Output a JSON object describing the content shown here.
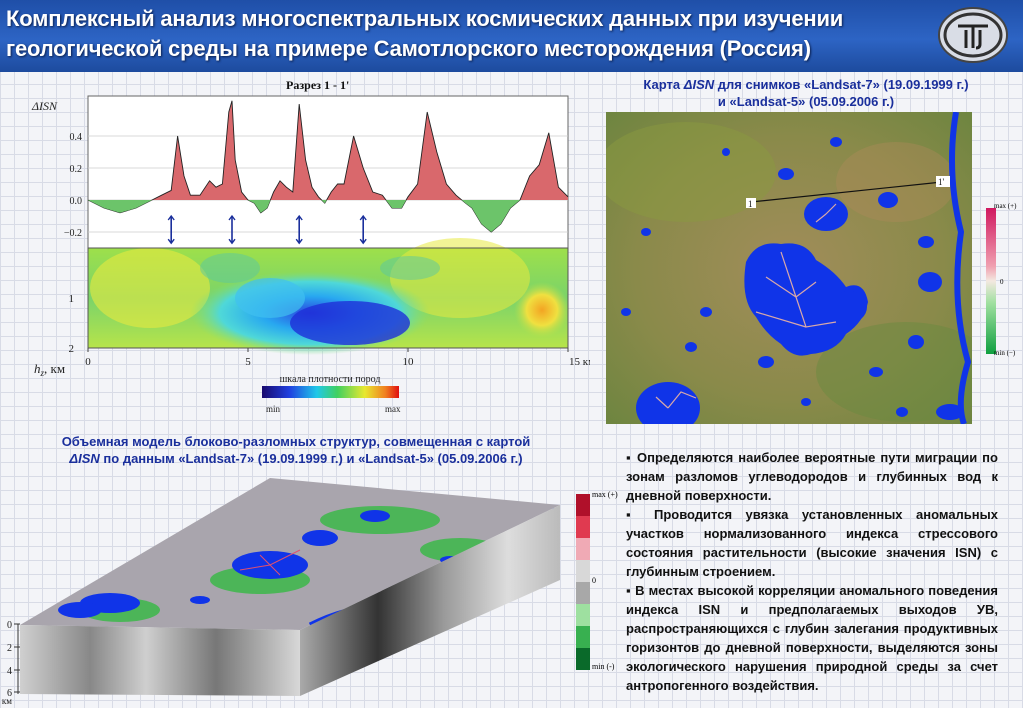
{
  "header": {
    "title_line1": "Комплексный анализ многоспектральных космических данных при изучении",
    "title_line2": "геологической среды на примере Самотлорского месторождения (Россия)"
  },
  "colors": {
    "header_bg": "#2a5fbf",
    "caption_text": "#1a2f9c",
    "positive_fill": "#d9686c",
    "negative_fill": "#6cc46a",
    "lake_blue": "#1034e8"
  },
  "section_profile": {
    "title": "Разрез 1 - 1'",
    "y_axis_label": "ΔISN",
    "y_ticks": [
      "0.4",
      "0.2",
      "0.0",
      "−0.2"
    ],
    "depth_ticks": [
      "1",
      "2"
    ],
    "x_ticks": [
      "0",
      "5",
      "10",
      "15 км"
    ],
    "hz_label": "h",
    "hz_sub": "z",
    "hz_unit": ", км",
    "density_scale_label": "шкала плотности пород",
    "density_min": "min",
    "density_max": "max"
  },
  "chart_data": {
    "type": "area",
    "xlabel": "",
    "ylabel": "ΔISN",
    "xlim": [
      0,
      15
    ],
    "ylim": [
      -0.3,
      0.65
    ],
    "x": [
      0.0,
      0.5,
      1.0,
      1.5,
      2.0,
      2.3,
      2.6,
      2.8,
      3.0,
      3.2,
      3.5,
      3.8,
      4.0,
      4.2,
      4.4,
      4.5,
      4.6,
      4.8,
      5.0,
      5.2,
      5.4,
      5.6,
      5.8,
      6.0,
      6.2,
      6.4,
      6.6,
      6.8,
      7.0,
      7.2,
      7.4,
      7.6,
      7.8,
      8.0,
      8.3,
      8.6,
      8.9,
      9.2,
      9.5,
      9.8,
      10.0,
      10.3,
      10.6,
      10.9,
      11.2,
      11.5,
      11.8,
      12.0,
      12.3,
      12.6,
      12.9,
      13.2,
      13.5,
      13.8,
      14.1,
      14.4,
      14.7,
      15.0
    ],
    "y": [
      0.0,
      -0.05,
      -0.08,
      -0.05,
      0.0,
      0.03,
      0.06,
      0.4,
      0.15,
      0.03,
      0.03,
      0.12,
      0.08,
      0.1,
      0.55,
      0.62,
      0.25,
      0.05,
      0.0,
      -0.02,
      -0.08,
      -0.05,
      0.05,
      0.12,
      0.08,
      0.05,
      0.6,
      0.25,
      0.08,
      0.02,
      -0.02,
      0.05,
      0.1,
      0.1,
      0.4,
      0.2,
      0.05,
      0.03,
      -0.05,
      -0.05,
      0.02,
      0.1,
      0.55,
      0.3,
      0.1,
      0.03,
      -0.02,
      -0.05,
      -0.15,
      -0.2,
      -0.15,
      -0.05,
      0.0,
      0.15,
      0.22,
      0.42,
      0.08,
      0.02
    ],
    "markers_km": [
      2.6,
      4.5,
      6.6,
      8.6
    ]
  },
  "map": {
    "title_line1_pre": "Карта ",
    "title_isn": "ΔISN",
    "title_line1_post": " для снимков «Landsat-7» (19.09.1999 г.)",
    "title_line2": "и «Landsat-5» (05.09.2006 г.)",
    "point_a": "1",
    "point_b": "1'",
    "legend_max": "max (+)",
    "legend_zero": "0",
    "legend_min": "min (−)"
  },
  "block_model": {
    "caption_line1": "Объемная модель блоково-разломных структур, совмещенная с картой",
    "caption_isn": "ΔISN",
    "caption_line2_post": " по данным «Landsat-7» (19.09.1999 г.) и «Landsat-5» (05.09.2006 г.)",
    "depth_ticks": [
      "0",
      "2",
      "4",
      "6"
    ],
    "depth_unit": "км",
    "legend_max": "max (+)",
    "legend_zero": "0",
    "legend_min": "min (-)"
  },
  "bullets": [
    "Определяются наиболее вероятные пути миграции по зонам разломов углеводородов и глубинных вод к дневной поверхности.",
    "Проводится увязка установленных аномальных участков нормализованного индекса стрессового состояния растительности (высокие значения ISN) с глубинным строением.",
    "В местах высокой корреляции аномального поведения индекса ISN и предполагаемых выходов УВ, распространяющихся с глубин залегания продуктивных горизонтов до дневной поверхности, выделяются зоны экологического нарушения природной среды за счет антропогенного воздействия."
  ]
}
